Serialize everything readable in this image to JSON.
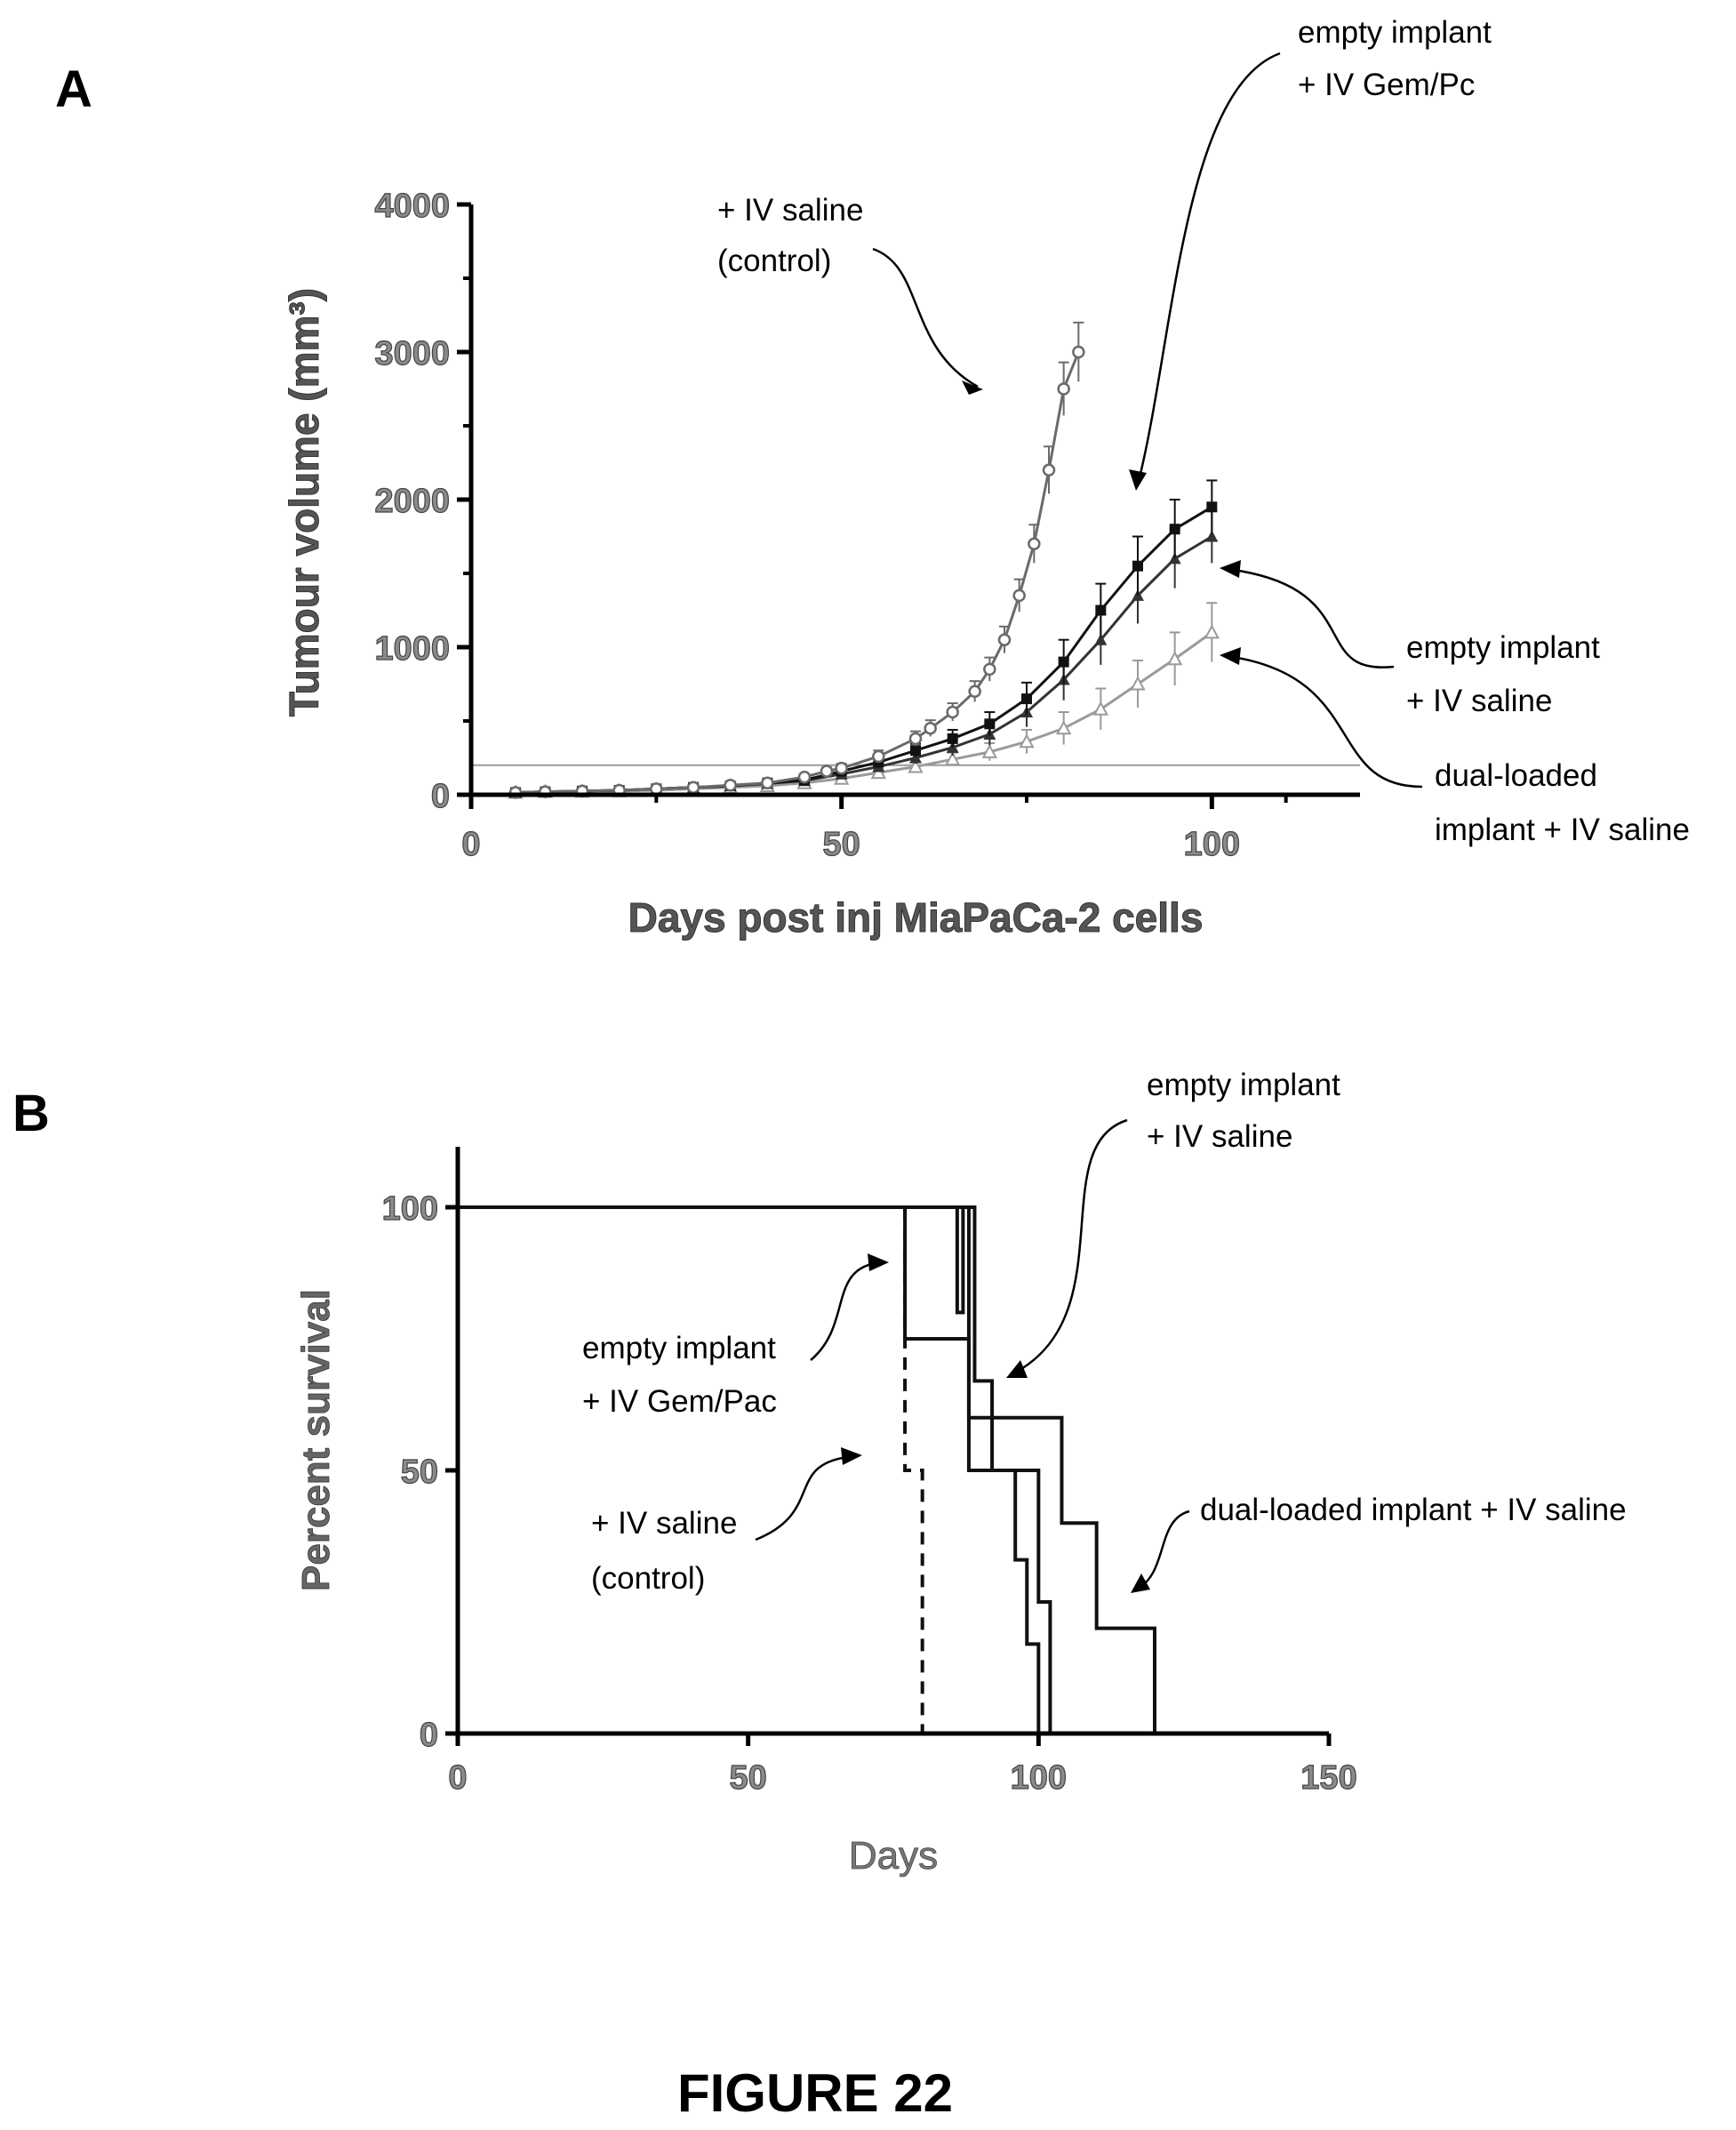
{
  "figure": {
    "caption": "FIGURE 22"
  },
  "chart_data": [
    {
      "panel": "A",
      "type": "line",
      "xlabel": "Days post inj MiaPaCa-2 cells",
      "ylabel": "Tumour volume (mm³)",
      "xlim": [
        0,
        120
      ],
      "ylim": [
        0,
        4000
      ],
      "xticks": [
        0,
        50,
        100
      ],
      "yticks": [
        0,
        1000,
        2000,
        3000,
        4000
      ],
      "reference_line_y": 200,
      "series": [
        {
          "name": "+ IV saline (control)",
          "color": "#6a6a6a",
          "marker": "open-circle",
          "x": [
            6,
            10,
            15,
            20,
            25,
            30,
            35,
            40,
            45,
            48,
            50,
            55,
            60,
            62,
            65,
            68,
            70,
            72,
            74,
            76,
            78,
            80,
            82
          ],
          "y": [
            15,
            20,
            25,
            30,
            40,
            50,
            65,
            80,
            120,
            160,
            180,
            260,
            380,
            450,
            560,
            700,
            850,
            1050,
            1350,
            1700,
            2200,
            2750,
            3000
          ],
          "err": [
            5,
            5,
            5,
            6,
            8,
            10,
            12,
            15,
            20,
            25,
            30,
            40,
            50,
            55,
            60,
            70,
            80,
            90,
            110,
            130,
            160,
            180,
            200
          ]
        },
        {
          "name": "empty implant + IV Gem/Pc",
          "color": "#111111",
          "marker": "filled-square",
          "x": [
            6,
            10,
            15,
            20,
            25,
            30,
            35,
            40,
            45,
            50,
            55,
            60,
            65,
            70,
            75,
            80,
            85,
            90,
            95,
            100
          ],
          "y": [
            15,
            20,
            25,
            30,
            40,
            50,
            60,
            80,
            100,
            160,
            220,
            300,
            380,
            480,
            650,
            900,
            1250,
            1550,
            1800,
            1950
          ],
          "err": [
            5,
            5,
            5,
            6,
            7,
            9,
            11,
            13,
            18,
            25,
            35,
            45,
            60,
            80,
            110,
            150,
            180,
            200,
            200,
            180
          ]
        },
        {
          "name": "empty implant + IV saline",
          "color": "#333333",
          "marker": "filled-triangle",
          "x": [
            6,
            10,
            15,
            20,
            25,
            30,
            35,
            40,
            45,
            50,
            55,
            60,
            65,
            70,
            75,
            80,
            85,
            90,
            95,
            100
          ],
          "y": [
            15,
            20,
            25,
            30,
            40,
            50,
            60,
            75,
            95,
            140,
            190,
            250,
            320,
            410,
            560,
            780,
            1050,
            1350,
            1600,
            1750
          ],
          "err": [
            5,
            5,
            5,
            6,
            7,
            9,
            11,
            13,
            17,
            22,
            30,
            40,
            55,
            75,
            100,
            140,
            170,
            190,
            200,
            180
          ]
        },
        {
          "name": "dual-loaded implant + IV saline",
          "color": "#9a9a9a",
          "marker": "open-triangle",
          "x": [
            6,
            10,
            15,
            20,
            25,
            30,
            35,
            40,
            45,
            50,
            55,
            60,
            65,
            70,
            75,
            80,
            85,
            90,
            95,
            100
          ],
          "y": [
            15,
            20,
            22,
            25,
            30,
            40,
            50,
            60,
            80,
            110,
            150,
            190,
            240,
            290,
            360,
            450,
            580,
            750,
            920,
            1100
          ],
          "err": [
            5,
            5,
            5,
            5,
            6,
            8,
            10,
            12,
            15,
            20,
            25,
            35,
            45,
            60,
            80,
            110,
            140,
            160,
            180,
            200
          ]
        }
      ]
    },
    {
      "panel": "B",
      "type": "line",
      "xlabel": "Days",
      "ylabel": "Percent survival",
      "xlim": [
        0,
        150
      ],
      "ylim": [
        0,
        100
      ],
      "xticks": [
        0,
        50,
        100,
        150
      ],
      "yticks": [
        0,
        50,
        100
      ],
      "series": [
        {
          "name": "+ IV saline (control)",
          "style": "dashed",
          "x": [
            0,
            77,
            77,
            80,
            80
          ],
          "y": [
            100,
            100,
            50,
            50,
            0
          ]
        },
        {
          "name": "empty implant + IV Gem/Pac",
          "style": "solid",
          "x": [
            0,
            77,
            77,
            88,
            88,
            96,
            96,
            98,
            98,
            100,
            100
          ],
          "y": [
            100,
            100,
            75,
            75,
            50,
            50,
            33,
            33,
            17,
            17,
            0
          ]
        },
        {
          "name": "empty implant + IV saline",
          "style": "solid",
          "x": [
            0,
            86,
            86,
            87,
            87,
            89,
            89,
            92,
            92,
            100,
            100,
            102,
            102
          ],
          "y": [
            100,
            100,
            80,
            80,
            100,
            100,
            67,
            67,
            50,
            50,
            25,
            25,
            0
          ]
        },
        {
          "name": "dual-loaded implant + IV saline",
          "style": "solid",
          "x": [
            0,
            88,
            88,
            104,
            104,
            110,
            110,
            120,
            120
          ],
          "y": [
            100,
            100,
            60,
            60,
            40,
            40,
            20,
            20,
            0
          ]
        }
      ]
    }
  ],
  "panels": {
    "a": {
      "label": "A",
      "annotations": {
        "control_1": "+ IV saline",
        "control_2": "(control)",
        "gem_1": "empty implant",
        "gem_2": "+ IV Gem/Pc",
        "empty_1": "empty implant",
        "empty_2": "+ IV saline",
        "dual_1": "dual-loaded",
        "dual_2": "implant + IV saline"
      }
    },
    "b": {
      "label": "B",
      "annotations": {
        "empty_1": "empty implant",
        "empty_2": "+ IV saline",
        "gem_1": "empty implant",
        "gem_2": "+ IV Gem/Pac",
        "control_1": "+ IV saline",
        "control_2": "(control)",
        "dual": "dual-loaded implant + IV saline"
      }
    }
  }
}
